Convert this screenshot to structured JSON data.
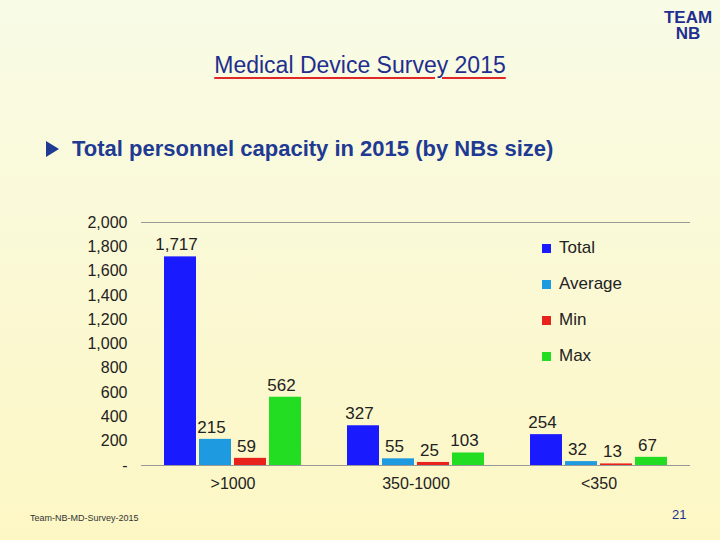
{
  "logo": [
    "TEAM",
    "NB"
  ],
  "footer": "Team-NB-MD-Survey-2015",
  "page": 21,
  "chart_data": {
    "type": "bar",
    "title": "Medical Device Survey 2015",
    "subtitle": "Total personnel capacity in 2015 (by NBs size)",
    "categories": [
      ">1000",
      "350-1000",
      "<350"
    ],
    "series": [
      {
        "name": "Total",
        "color": "#1a1aff",
        "values": [
          1717,
          327,
          254
        ],
        "value_labels": [
          "1,717",
          "327",
          "254"
        ]
      },
      {
        "name": "Average",
        "color": "#1e9be0",
        "values": [
          215,
          55,
          32
        ]
      },
      {
        "name": "Min",
        "color": "#e8231c",
        "values": [
          59,
          25,
          13
        ]
      },
      {
        "name": "Max",
        "color": "#22dd22",
        "values": [
          562,
          103,
          67
        ]
      }
    ],
    "ylim": [
      0,
      2000
    ],
    "yticks": [
      {
        "value": 0,
        "label": "-"
      },
      200,
      400,
      600,
      800,
      {
        "value": 1000,
        "label": "1,000"
      },
      {
        "value": 1200,
        "label": "1,200"
      },
      {
        "value": 1400,
        "label": "1,400"
      },
      {
        "value": 1600,
        "label": "1,600"
      },
      {
        "value": 1800,
        "label": "1,800"
      },
      {
        "value": 2000,
        "label": "2,000"
      }
    ],
    "grid": false,
    "legend": "top-right",
    "data_labels": true
  }
}
